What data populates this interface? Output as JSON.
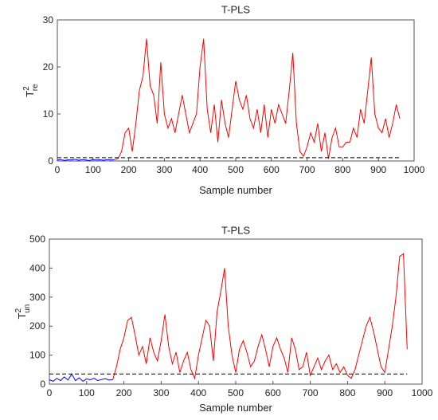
{
  "chart_data": [
    {
      "type": "line",
      "title": "T-PLS",
      "xlabel": "Sample number",
      "ylabel": "T",
      "ylabel_sup": "2",
      "ylabel_sub": "re",
      "xlim": [
        0,
        1000
      ],
      "xticks": [
        0,
        100,
        200,
        300,
        400,
        500,
        600,
        700,
        800,
        900,
        1000
      ],
      "ylim": [
        0,
        30
      ],
      "yticks": [
        0,
        10,
        20,
        30
      ],
      "threshold": {
        "value": 0.7,
        "color": "#000000"
      },
      "series": [
        {
          "color": "#0000ff",
          "x": [
            0,
            10,
            20,
            30,
            40,
            50,
            60,
            70,
            80,
            90,
            100,
            110,
            120,
            130,
            140,
            150,
            160
          ],
          "values": [
            0.2,
            0.3,
            0.1,
            0.25,
            0.2,
            0.35,
            0.15,
            0.3,
            0.2,
            0.1,
            0.3,
            0.2,
            0.25,
            0.15,
            0.3,
            0.2,
            0.25
          ]
        },
        {
          "color": "#ff0000",
          "x": [
            160,
            170,
            180,
            190,
            200,
            210,
            220,
            230,
            240,
            250,
            260,
            270,
            280,
            290,
            300,
            310,
            320,
            330,
            340,
            350,
            360,
            370,
            380,
            390,
            400,
            410,
            420,
            430,
            440,
            450,
            460,
            470,
            480,
            490,
            500,
            510,
            520,
            530,
            540,
            550,
            560,
            570,
            580,
            590,
            600,
            610,
            620,
            630,
            640,
            650,
            660,
            670,
            680,
            690,
            700,
            710,
            720,
            730,
            740,
            750,
            760,
            770,
            780,
            790,
            800,
            810,
            820,
            830,
            840,
            850,
            860,
            870,
            880,
            890,
            900,
            910,
            920,
            930,
            940,
            950,
            960
          ],
          "values": [
            0.3,
            0.5,
            2,
            6,
            7,
            2,
            8,
            15,
            18,
            26,
            16,
            14,
            8,
            21,
            10,
            7,
            9,
            6,
            10,
            14,
            10,
            6,
            8,
            10,
            20,
            26,
            11,
            6,
            12,
            4,
            13,
            8,
            5,
            11,
            17,
            13,
            11,
            14,
            9,
            7,
            11,
            6,
            12,
            5,
            11,
            8,
            12,
            10,
            8,
            15,
            23,
            8,
            2,
            1,
            3,
            6,
            4,
            8,
            2,
            6,
            0.5,
            5,
            7,
            3,
            3,
            4,
            4,
            7,
            5,
            11,
            8,
            15,
            22,
            10,
            7,
            6,
            9,
            5,
            8,
            12,
            9
          ]
        }
      ]
    },
    {
      "type": "line",
      "title": "T-PLS",
      "xlabel": "Sample number",
      "ylabel": "T",
      "ylabel_sup": "2",
      "ylabel_sub": "un",
      "xlim": [
        0,
        1000
      ],
      "xticks": [
        0,
        100,
        200,
        300,
        400,
        500,
        600,
        700,
        800,
        900,
        1000
      ],
      "ylim": [
        0,
        500
      ],
      "yticks": [
        0,
        100,
        200,
        300,
        400,
        500
      ],
      "threshold": {
        "value": 35,
        "color": "#000000"
      },
      "series": [
        {
          "color": "#0000ff",
          "x": [
            0,
            10,
            20,
            30,
            40,
            50,
            60,
            70,
            80,
            90,
            100,
            110,
            120,
            130,
            140,
            150,
            160,
            170
          ],
          "values": [
            15,
            10,
            20,
            12,
            25,
            14,
            35,
            12,
            22,
            10,
            18,
            15,
            20,
            12,
            16,
            19,
            14,
            15
          ]
        },
        {
          "color": "#ff0000",
          "x": [
            170,
            180,
            190,
            200,
            210,
            220,
            230,
            240,
            250,
            260,
            270,
            280,
            290,
            300,
            310,
            320,
            330,
            340,
            350,
            360,
            370,
            380,
            390,
            400,
            410,
            420,
            430,
            440,
            450,
            460,
            470,
            480,
            490,
            500,
            510,
            520,
            530,
            540,
            550,
            560,
            570,
            580,
            590,
            600,
            610,
            620,
            630,
            640,
            650,
            660,
            670,
            680,
            690,
            700,
            710,
            720,
            730,
            740,
            750,
            760,
            770,
            780,
            790,
            800,
            810,
            820,
            830,
            840,
            850,
            860,
            870,
            880,
            890,
            900,
            910,
            920,
            930,
            940,
            950,
            960
          ],
          "values": [
            15,
            60,
            120,
            160,
            220,
            230,
            170,
            100,
            130,
            70,
            160,
            110,
            80,
            150,
            240,
            130,
            70,
            110,
            40,
            80,
            110,
            50,
            20,
            100,
            160,
            220,
            200,
            80,
            250,
            320,
            400,
            200,
            100,
            40,
            120,
            150,
            110,
            60,
            80,
            130,
            170,
            120,
            60,
            130,
            160,
            120,
            90,
            40,
            160,
            120,
            50,
            60,
            110,
            30,
            60,
            90,
            50,
            80,
            100,
            50,
            70,
            40,
            60,
            30,
            20,
            50,
            100,
            150,
            200,
            230,
            180,
            120,
            60,
            40,
            120,
            200,
            300,
            440,
            450,
            120
          ]
        }
      ]
    }
  ]
}
